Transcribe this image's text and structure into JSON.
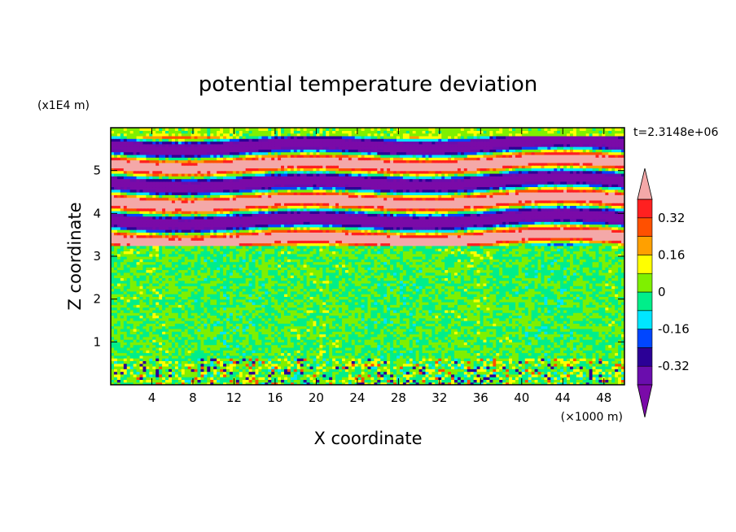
{
  "chart_data": {
    "type": "heatmap",
    "title": "potential temperature deviation",
    "xlabel": "X coordinate",
    "ylabel": "Z coordinate",
    "x_unit": "(×1000 m)",
    "y_unit": "(x1E4 m)",
    "time_label": "t=2.3148e+06",
    "xlim": [
      0,
      50
    ],
    "ylim": [
      0,
      6
    ],
    "x_ticks": [
      4,
      8,
      12,
      16,
      20,
      24,
      28,
      32,
      36,
      40,
      44,
      48
    ],
    "y_ticks": [
      1,
      2,
      3,
      4,
      5
    ],
    "colorbar": {
      "levels": [
        -0.4,
        -0.32,
        -0.24,
        -0.16,
        -0.08,
        0,
        0.08,
        0.16,
        0.24,
        0.32,
        0.4
      ],
      "labels": [
        "0.32",
        "0.16",
        "0",
        "-0.16",
        "-0.32"
      ],
      "label_values": [
        0.32,
        0.16,
        0,
        -0.16,
        -0.32
      ],
      "colors": [
        "#6a0dad",
        "#2b0096",
        "#0046ff",
        "#00e6ff",
        "#00ee8a",
        "#7ff000",
        "#ffff00",
        "#ffa000",
        "#ff5000",
        "#ff2020"
      ],
      "under_color": "#7a0aa8",
      "over_color": "#f4a8a8"
    },
    "layers": [
      {
        "z_range": [
          0,
          0.6
        ],
        "description_value": 0.02
      },
      {
        "z_range": [
          0.6,
          3.2
        ],
        "description_value": 0.01
      },
      {
        "z_range": [
          3.2,
          5.8
        ],
        "description_value": "alternating > 0.4 and < -0.4"
      },
      {
        "z_range": [
          5.8,
          6.0
        ],
        "description_value": 0.05
      }
    ]
  }
}
